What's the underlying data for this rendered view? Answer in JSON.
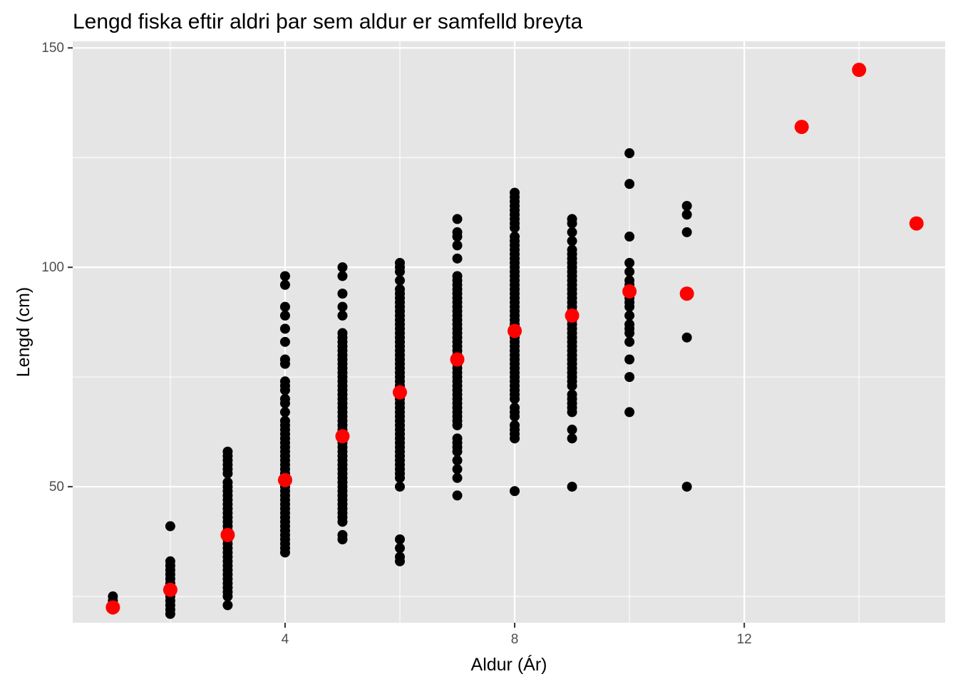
{
  "chart_data": {
    "type": "scatter",
    "title": "Lengd fiska eftir aldri þar sem aldur er samfelld breyta",
    "xlabel": "Aldur (Ár)",
    "ylabel": "Lengd (cm)",
    "xlim": [
      0.3,
      15.5
    ],
    "ylim": [
      19,
      151.5
    ],
    "x_ticks": [
      4,
      8,
      12
    ],
    "y_ticks": [
      50,
      100,
      150
    ],
    "x_tick_labels": [
      "4",
      "8",
      "12"
    ],
    "y_tick_labels": [
      "50",
      "100",
      "150"
    ],
    "grid": true,
    "legend": "none",
    "colors": {
      "panel": "#e5e5e5",
      "grid": "#ffffff",
      "observation": "#000000",
      "mean": "#ff0000"
    },
    "series": [
      {
        "role": "observations",
        "color": "#000000",
        "columns": [
          {
            "x": 1,
            "y": [
              22,
              23,
              24,
              25
            ]
          },
          {
            "x": 2,
            "y": [
              21,
              22,
              23,
              24,
              25,
              26,
              27,
              28,
              29,
              30,
              31,
              32,
              33,
              41
            ]
          },
          {
            "x": 3,
            "y": [
              23,
              25,
              26,
              27,
              28,
              29,
              30,
              31,
              32,
              33,
              34,
              35,
              36,
              37,
              38,
              39,
              40,
              41,
              42,
              43,
              44,
              45,
              46,
              47,
              48,
              49,
              50,
              51,
              53,
              54,
              55,
              56,
              57,
              58
            ]
          },
          {
            "x": 4,
            "y": [
              35,
              36,
              37,
              38,
              39,
              40,
              41,
              42,
              43,
              44,
              45,
              46,
              47,
              48,
              49,
              50,
              51,
              52,
              53,
              54,
              55,
              56,
              57,
              58,
              59,
              60,
              61,
              62,
              63,
              64,
              65,
              67,
              69,
              70,
              72,
              73,
              74,
              78,
              79,
              83,
              86,
              89,
              91,
              96,
              98
            ]
          },
          {
            "x": 5,
            "y": [
              38,
              39,
              42,
              43,
              44,
              45,
              46,
              47,
              48,
              49,
              50,
              51,
              52,
              53,
              54,
              55,
              56,
              57,
              58,
              59,
              60,
              61,
              62,
              63,
              64,
              65,
              66,
              67,
              68,
              69,
              70,
              71,
              72,
              73,
              74,
              75,
              76,
              77,
              78,
              79,
              80,
              81,
              82,
              83,
              84,
              85,
              89,
              91,
              94,
              98,
              100
            ]
          },
          {
            "x": 6,
            "y": [
              33,
              34,
              36,
              38,
              50,
              52,
              53,
              54,
              55,
              56,
              57,
              58,
              59,
              60,
              61,
              62,
              63,
              64,
              65,
              66,
              67,
              68,
              69,
              70,
              71,
              72,
              73,
              74,
              75,
              76,
              77,
              78,
              79,
              80,
              81,
              82,
              83,
              84,
              85,
              86,
              87,
              88,
              89,
              90,
              91,
              92,
              93,
              94,
              95,
              97,
              99,
              100,
              101
            ]
          },
          {
            "x": 7,
            "y": [
              48,
              52,
              54,
              56,
              58,
              59,
              60,
              61,
              64,
              65,
              66,
              67,
              68,
              69,
              70,
              71,
              72,
              73,
              74,
              75,
              76,
              77,
              78,
              79,
              80,
              81,
              82,
              83,
              84,
              85,
              86,
              87,
              88,
              89,
              90,
              91,
              92,
              93,
              94,
              95,
              96,
              97,
              98,
              102,
              105,
              107,
              108,
              111
            ]
          },
          {
            "x": 8,
            "y": [
              49,
              61,
              62,
              63,
              64,
              66,
              67,
              68,
              70,
              71,
              72,
              73,
              74,
              75,
              76,
              77,
              78,
              79,
              80,
              81,
              82,
              83,
              84,
              85,
              86,
              87,
              88,
              89,
              90,
              91,
              92,
              93,
              94,
              95,
              96,
              97,
              98,
              99,
              100,
              101,
              102,
              103,
              104,
              105,
              106,
              107,
              109,
              110,
              111,
              112,
              113,
              114,
              115,
              116,
              117
            ]
          },
          {
            "x": 9,
            "y": [
              50,
              61,
              63,
              67,
              68,
              69,
              70,
              71,
              73,
              74,
              75,
              76,
              77,
              78,
              79,
              80,
              81,
              82,
              83,
              84,
              85,
              86,
              87,
              88,
              89,
              90,
              91,
              92,
              93,
              94,
              95,
              96,
              97,
              98,
              99,
              100,
              101,
              102,
              103,
              104,
              106,
              108,
              110,
              111
            ]
          },
          {
            "x": 10,
            "y": [
              67,
              75,
              79,
              83,
              85,
              86,
              87,
              89,
              91,
              92,
              93,
              94,
              95,
              96,
              97,
              99,
              101,
              107,
              119,
              126
            ]
          },
          {
            "x": 11,
            "y": [
              50,
              84,
              108,
              112,
              114
            ]
          }
        ]
      },
      {
        "role": "age-means",
        "color": "#ff0000",
        "points": [
          {
            "x": 1,
            "y": 22.5
          },
          {
            "x": 2,
            "y": 26.5
          },
          {
            "x": 3,
            "y": 39
          },
          {
            "x": 4,
            "y": 51.5
          },
          {
            "x": 5,
            "y": 61.5
          },
          {
            "x": 6,
            "y": 71.5
          },
          {
            "x": 7,
            "y": 79
          },
          {
            "x": 8,
            "y": 85.5
          },
          {
            "x": 9,
            "y": 89
          },
          {
            "x": 10,
            "y": 94.5
          },
          {
            "x": 11,
            "y": 94
          },
          {
            "x": 13,
            "y": 132
          },
          {
            "x": 14,
            "y": 145
          },
          {
            "x": 15,
            "y": 110
          }
        ]
      }
    ]
  }
}
